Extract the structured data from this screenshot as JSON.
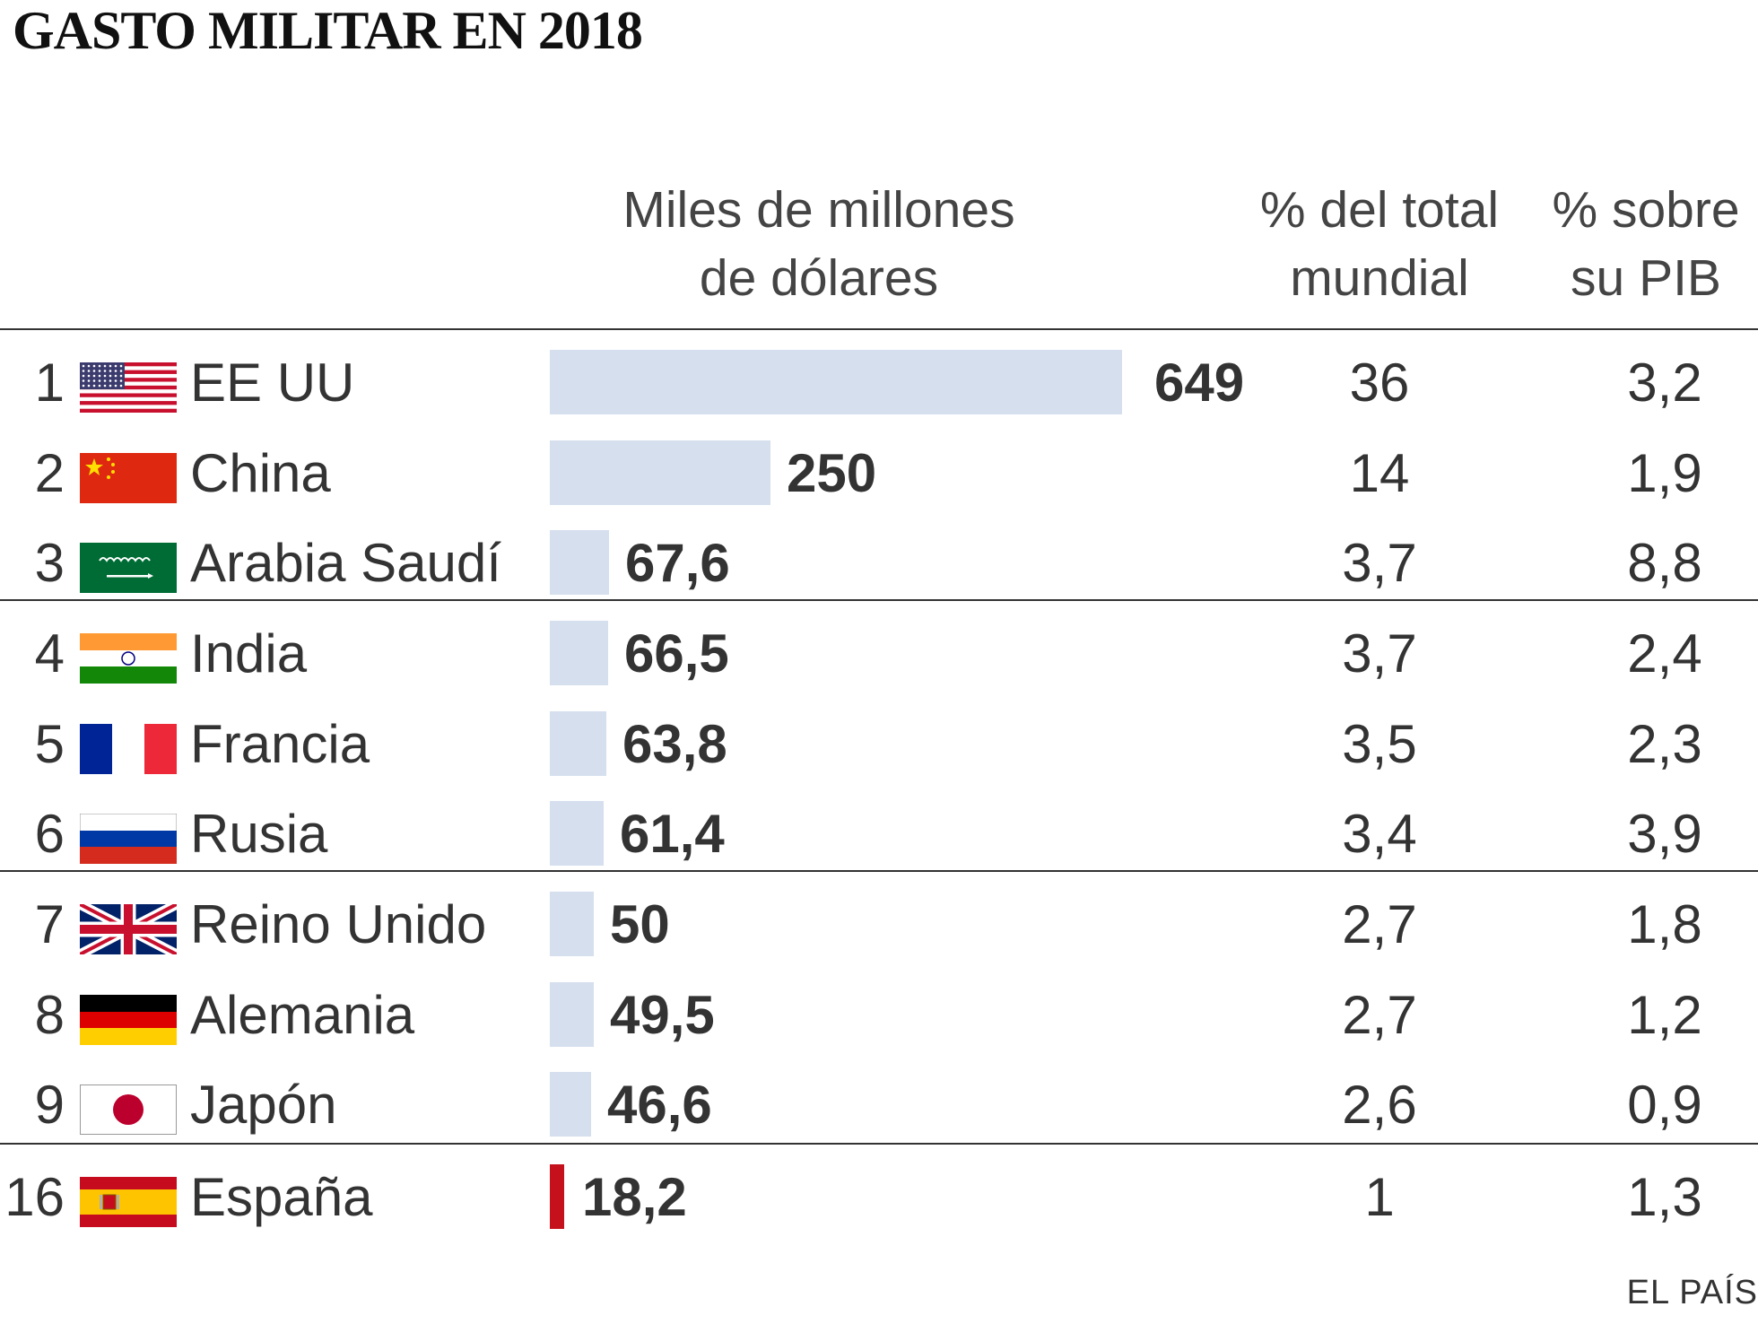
{
  "title": "GASTO MILITAR EN 2018",
  "headers": {
    "spending": [
      "Miles de millones",
      "de dólares"
    ],
    "world_share": [
      "% del total",
      "mundial"
    ],
    "gdp_share": [
      "% sobre",
      "su PIB"
    ]
  },
  "source": "EL PAÍS",
  "colors": {
    "bar": "#d5dfee",
    "highlight_bar": "#c4111b",
    "text": "#333333"
  },
  "chart_data": {
    "type": "bar",
    "title": "GASTO MILITAR EN 2018",
    "ylabel": "Miles de millones de dólares",
    "xlim": [
      0,
      649
    ],
    "rows": [
      {
        "rank": "1",
        "country": "EE UU",
        "flag": "usa-flag-icon",
        "value": 649,
        "value_label": "649",
        "world_pct": "36",
        "gdp_pct": "3,2"
      },
      {
        "rank": "2",
        "country": "China",
        "flag": "china-flag-icon",
        "value": 250,
        "value_label": "250",
        "world_pct": "14",
        "gdp_pct": "1,9"
      },
      {
        "rank": "3",
        "country": "Arabia Saudí",
        "flag": "saudi-arabia-flag-icon",
        "value": 67.6,
        "value_label": "67,6",
        "world_pct": "3,7",
        "gdp_pct": "8,8"
      },
      {
        "rank": "4",
        "country": "India",
        "flag": "india-flag-icon",
        "value": 66.5,
        "value_label": "66,5",
        "world_pct": "3,7",
        "gdp_pct": "2,4"
      },
      {
        "rank": "5",
        "country": "Francia",
        "flag": "france-flag-icon",
        "value": 63.8,
        "value_label": "63,8",
        "world_pct": "3,5",
        "gdp_pct": "2,3"
      },
      {
        "rank": "6",
        "country": "Rusia",
        "flag": "russia-flag-icon",
        "value": 61.4,
        "value_label": "61,4",
        "world_pct": "3,4",
        "gdp_pct": "3,9"
      },
      {
        "rank": "7",
        "country": "Reino Unido",
        "flag": "uk-flag-icon",
        "value": 50,
        "value_label": "50",
        "world_pct": "2,7",
        "gdp_pct": "1,8"
      },
      {
        "rank": "8",
        "country": "Alemania",
        "flag": "germany-flag-icon",
        "value": 49.5,
        "value_label": "49,5",
        "world_pct": "2,7",
        "gdp_pct": "1,2"
      },
      {
        "rank": "9",
        "country": "Japón",
        "flag": "japan-flag-icon",
        "value": 46.6,
        "value_label": "46,6",
        "world_pct": "2,6",
        "gdp_pct": "0,9"
      },
      {
        "rank": "16",
        "country": "España",
        "flag": "spain-flag-icon",
        "value": 18.2,
        "value_label": "18,2",
        "world_pct": "1",
        "gdp_pct": "1,3",
        "highlight": true
      }
    ]
  }
}
